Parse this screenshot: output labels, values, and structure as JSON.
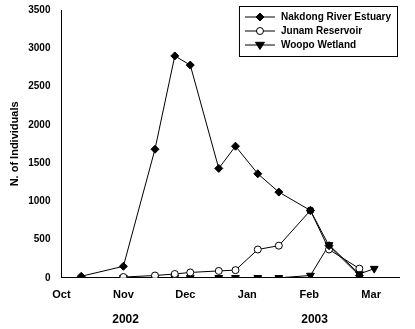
{
  "chart_data": {
    "type": "line",
    "y_label": "N. of Individuals",
    "xlim": [
      10,
      15.45
    ],
    "xticks": [
      {
        "value": 10,
        "label": "Oct"
      },
      {
        "value": 11,
        "label": "Nov"
      },
      {
        "value": 12,
        "label": "Dec"
      },
      {
        "value": 13,
        "label": "Jan"
      },
      {
        "value": 14,
        "label": "Feb"
      },
      {
        "value": 15,
        "label": "Mar"
      }
    ],
    "ylim": [
      0,
      3500
    ],
    "yticks": [
      0,
      500,
      1000,
      1500,
      2000,
      2500,
      3000,
      3500
    ],
    "annotations": [
      "2002",
      "2003"
    ],
    "legend": "upper right",
    "grid": false,
    "series": [
      {
        "name": "Nakdong River Estuary",
        "color": "#000000",
        "marker": "diamond",
        "x": [
          10.32,
          11.0,
          11.51,
          11.83,
          12.08,
          12.54,
          12.81,
          13.17,
          13.51,
          14.02,
          14.32,
          14.81
        ],
        "values": [
          20,
          150,
          1680,
          2900,
          2780,
          1430,
          1720,
          1360,
          1120,
          880,
          420,
          30
        ]
      },
      {
        "name": "Junam Reservoir",
        "color": "#000000",
        "marker": "circle_open",
        "x": [
          11.0,
          11.51,
          11.83,
          12.08,
          12.54,
          12.81,
          13.17,
          13.51,
          14.02,
          14.32,
          14.81
        ],
        "values": [
          10,
          30,
          50,
          70,
          90,
          100,
          370,
          420,
          880,
          370,
          120
        ]
      },
      {
        "name": "Woopo Wetland",
        "color": "#000000",
        "marker": "triangle_down",
        "x": [
          11.0,
          11.51,
          11.83,
          12.08,
          12.54,
          12.81,
          13.17,
          13.51,
          14.02,
          14.32,
          14.81,
          15.05
        ],
        "values": [
          0,
          0,
          0,
          0,
          0,
          0,
          0,
          0,
          30,
          430,
          50,
          120
        ]
      }
    ]
  }
}
